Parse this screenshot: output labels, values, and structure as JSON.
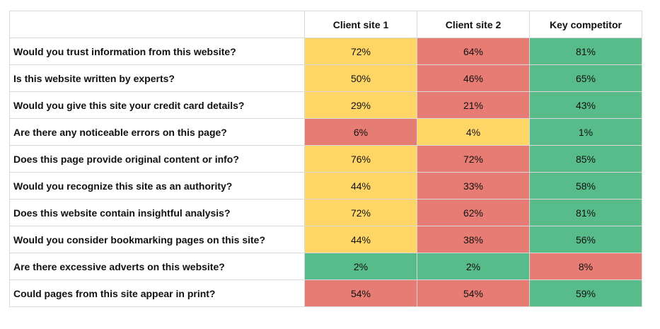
{
  "chart_data": {
    "type": "table",
    "columns": [
      "Client site 1",
      "Client site 2",
      "Key competitor"
    ],
    "rows": [
      {
        "question": "Would you trust information from this website?",
        "values": [
          "72%",
          "64%",
          "81%"
        ],
        "levels": [
          "mid",
          "low",
          "high"
        ]
      },
      {
        "question": "Is this website written by experts?",
        "values": [
          "50%",
          "46%",
          "65%"
        ],
        "levels": [
          "mid",
          "low",
          "high"
        ]
      },
      {
        "question": "Would you give this site your credit card details?",
        "values": [
          "29%",
          "21%",
          "43%"
        ],
        "levels": [
          "mid",
          "low",
          "high"
        ]
      },
      {
        "question": "Are there any noticeable errors on this page?",
        "values": [
          "6%",
          "4%",
          "1%"
        ],
        "levels": [
          "low",
          "mid",
          "high"
        ]
      },
      {
        "question": "Does this page provide original content or info?",
        "values": [
          "76%",
          "72%",
          "85%"
        ],
        "levels": [
          "mid",
          "low",
          "high"
        ]
      },
      {
        "question": "Would you recognize this site as an authority?",
        "values": [
          "44%",
          "33%",
          "58%"
        ],
        "levels": [
          "mid",
          "low",
          "high"
        ]
      },
      {
        "question": "Does this website contain insightful analysis?",
        "values": [
          "72%",
          "62%",
          "81%"
        ],
        "levels": [
          "mid",
          "low",
          "high"
        ]
      },
      {
        "question": "Would you consider bookmarking pages on this site?",
        "values": [
          "44%",
          "38%",
          "56%"
        ],
        "levels": [
          "mid",
          "low",
          "high"
        ]
      },
      {
        "question": "Are there excessive adverts on this website?",
        "values": [
          "2%",
          "2%",
          "8%"
        ],
        "levels": [
          "high",
          "high",
          "low"
        ]
      },
      {
        "question": "Could pages from this site appear in print?",
        "values": [
          "54%",
          "54%",
          "59%"
        ],
        "levels": [
          "low",
          "low",
          "high"
        ]
      }
    ]
  },
  "colors": {
    "high": "#57bb8a",
    "mid": "#ffd666",
    "low": "#e67c73"
  }
}
